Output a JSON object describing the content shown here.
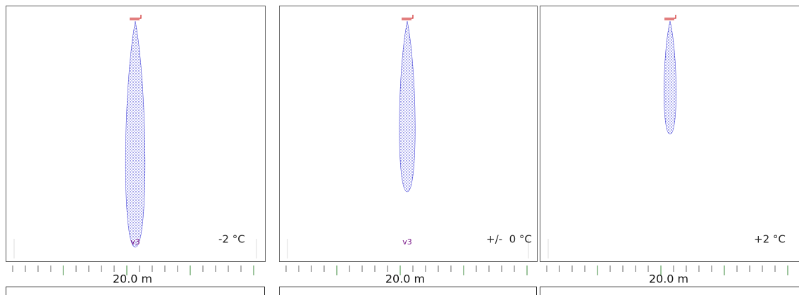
{
  "panels": [
    {
      "temperature": "-2 °C",
      "marker": "v3",
      "scale": "20.0 m"
    },
    {
      "temperature": "+/-  0 °C",
      "marker": "v3",
      "scale": "20.0 m"
    },
    {
      "temperature": "+2 °C",
      "scale": "20.0 m"
    }
  ]
}
